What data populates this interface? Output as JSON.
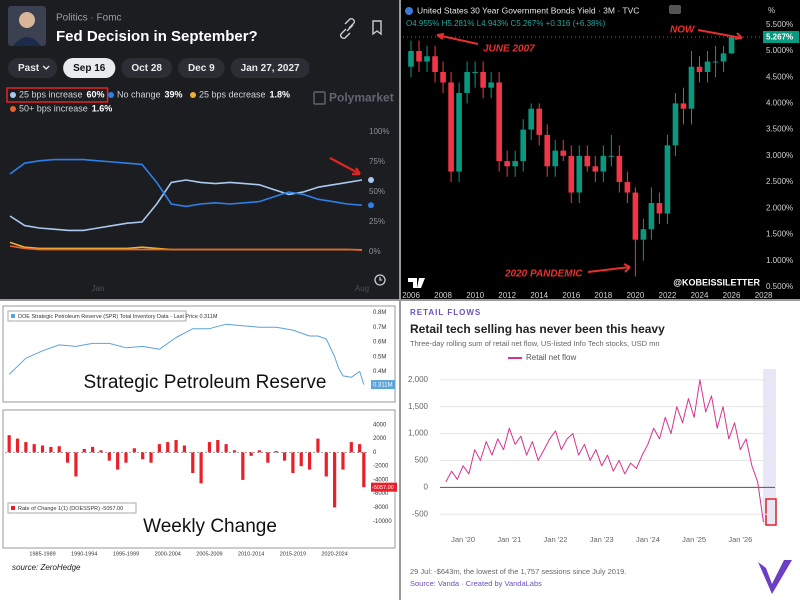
{
  "chart_data": [
    {
      "type": "line",
      "breadcrumb": "Politics · Fomc",
      "title": "Fed Decision in September?",
      "tabs": [
        "Past",
        "Sep 16",
        "Oct 28",
        "Dec 9",
        "Jan 27, 2027"
      ],
      "selected_tab": 1,
      "brand": "Polymarket",
      "categories": [
        null,
        null,
        null,
        null,
        null,
        null,
        "Jan",
        null,
        null,
        null,
        null,
        null,
        null,
        null,
        null,
        null,
        null,
        null,
        null,
        null,
        null,
        null,
        null,
        null,
        "Aug"
      ],
      "series": [
        {
          "name": "25 bps increase",
          "legend_value": "60%",
          "color": "#a9c9ef",
          "values": [
            30,
            22,
            20,
            19,
            18,
            18,
            20,
            22,
            24,
            25,
            40,
            58,
            60,
            58,
            57,
            58,
            57,
            56,
            52,
            48,
            50,
            54,
            56,
            58,
            60
          ]
        },
        {
          "name": "No change",
          "legend_value": "39%",
          "color": "#2f7fe8",
          "values": [
            65,
            74,
            76,
            77,
            77,
            77,
            76,
            75,
            74,
            73,
            58,
            40,
            38,
            40,
            41,
            40,
            41,
            42,
            46,
            50,
            48,
            44,
            42,
            40,
            39
          ]
        },
        {
          "name": "25 bps decrease",
          "legend_value": "1.8%",
          "color": "#f2b134",
          "values": [
            8,
            4,
            3,
            3,
            3,
            3,
            3,
            3,
            3,
            4,
            3,
            2,
            2,
            2,
            2,
            2,
            2,
            2,
            2,
            2,
            2,
            2,
            2,
            2,
            1.8
          ]
        },
        {
          "name": "50+ bps increase",
          "legend_value": "1.6%",
          "color": "#e8622a",
          "values": [
            5,
            3,
            2,
            2,
            2,
            2,
            2,
            2,
            2,
            2,
            2,
            2,
            2,
            2,
            2,
            2,
            2,
            2,
            2,
            2,
            2,
            2,
            2,
            2,
            1.6
          ]
        }
      ],
      "ylim": [
        0,
        100
      ],
      "yticks": [
        {
          "value": 0,
          "label": "0%"
        },
        {
          "value": 25,
          "label": "25%"
        },
        {
          "value": 50,
          "label": "50%"
        },
        {
          "value": 75,
          "label": "75%"
        },
        {
          "value": 100,
          "label": "100%"
        }
      ]
    },
    {
      "type": "candlestick",
      "title": "United States 30 Year Government Bonds Yield · 3M · TVC",
      "subtitle": "O4.955% H5.281% L4.943% C5.267% +0.316 (+6.38%)",
      "unit": "%",
      "x": [
        2006,
        2006.5,
        2007,
        2007.5,
        2008,
        2008.5,
        2009,
        2009.5,
        2010,
        2010.5,
        2011,
        2011.5,
        2012,
        2012.5,
        2013,
        2013.5,
        2014,
        2014.5,
        2015,
        2015.5,
        2016,
        2016.5,
        2017,
        2017.5,
        2018,
        2018.5,
        2019,
        2019.5,
        2020,
        2020.5,
        2021,
        2021.5,
        2022,
        2022.5,
        2023,
        2023.5,
        2024,
        2024.5,
        2025,
        2025.5,
        2026
      ],
      "open": [
        4.7,
        5.0,
        4.8,
        4.9,
        4.6,
        4.4,
        2.7,
        4.2,
        4.6,
        4.6,
        4.3,
        4.4,
        2.9,
        2.8,
        2.9,
        3.5,
        3.9,
        3.4,
        2.8,
        3.1,
        3.0,
        2.3,
        3.0,
        2.8,
        2.7,
        3.0,
        3.0,
        2.5,
        2.3,
        1.4,
        1.6,
        2.1,
        1.9,
        3.2,
        4.0,
        3.9,
        4.7,
        4.6,
        4.8,
        4.8,
        4.955
      ],
      "high": [
        5.2,
        5.2,
        5.1,
        5.1,
        4.8,
        4.6,
        4.4,
        4.8,
        4.8,
        4.8,
        4.6,
        4.6,
        3.1,
        3.1,
        3.7,
        4.0,
        4.0,
        3.6,
        3.3,
        3.3,
        3.2,
        3.2,
        3.2,
        3.0,
        3.2,
        3.4,
        3.2,
        2.7,
        2.4,
        1.8,
        2.4,
        2.3,
        3.4,
        4.2,
        4.3,
        5.0,
        4.9,
        5.0,
        5.1,
        5.1,
        5.281
      ],
      "low": [
        4.5,
        4.6,
        4.6,
        4.4,
        4.2,
        2.5,
        2.5,
        4.0,
        4.3,
        4.1,
        4.1,
        2.7,
        2.6,
        2.6,
        2.7,
        3.3,
        3.2,
        2.6,
        2.6,
        2.9,
        2.1,
        2.1,
        2.7,
        2.5,
        2.5,
        2.8,
        2.3,
        2.1,
        0.7,
        1.0,
        1.4,
        1.7,
        1.7,
        3.0,
        3.6,
        3.6,
        4.4,
        4.4,
        4.5,
        4.6,
        4.943
      ],
      "close": [
        5.0,
        4.8,
        4.9,
        4.6,
        4.4,
        2.7,
        4.2,
        4.6,
        4.6,
        4.3,
        4.4,
        2.9,
        2.8,
        2.9,
        3.5,
        3.9,
        3.4,
        2.8,
        3.1,
        3.0,
        2.3,
        3.0,
        2.8,
        2.7,
        3.0,
        3.0,
        2.5,
        2.3,
        1.4,
        1.6,
        2.1,
        1.9,
        3.2,
        4.0,
        3.9,
        4.7,
        4.6,
        4.8,
        4.8,
        4.955,
        5.267
      ],
      "up_color": "#089981",
      "down_color": "#f23645",
      "last_label": "5.267%",
      "xlim": [
        2005.5,
        2027.9
      ],
      "ylim": [
        0.44,
        5.63
      ],
      "xticks": [
        2006,
        2008,
        2010,
        2012,
        2014,
        2016,
        2018,
        2020,
        2022,
        2024,
        2026,
        2028
      ],
      "yticks": [
        {
          "value": 0.5,
          "label": "0.500%"
        },
        {
          "value": 1.0,
          "label": "1.000%"
        },
        {
          "value": 1.5,
          "label": "1.500%"
        },
        {
          "value": 2.0,
          "label": "2.000%"
        },
        {
          "value": 2.5,
          "label": "2.500%"
        },
        {
          "value": 3.0,
          "label": "3.000%"
        },
        {
          "value": 3.5,
          "label": "3.500%"
        },
        {
          "value": 4.0,
          "label": "4.000%"
        },
        {
          "value": 4.5,
          "label": "4.500%"
        },
        {
          "value": 5.0,
          "label": "5.000%"
        },
        {
          "value": 5.5,
          "label": "5.500%"
        }
      ],
      "annotations": [
        "JUNE 2007",
        "NOW",
        "2020 PANDEMIC"
      ],
      "watermark": "@KOBEISSILETTER"
    },
    {
      "type": "line",
      "legend": "DOE Strategic Petroleum Reserve (SPR) Total Inventory Data - Last Price 0.311M",
      "label": "Strategic Petroleum Reserve",
      "color": "#5ba3d9",
      "x": [
        1983,
        1985,
        1987,
        1989,
        1991,
        1993,
        1995,
        1997,
        1999,
        2001,
        2003,
        2005,
        2007,
        2009,
        2011,
        2013,
        2015,
        2017,
        2019,
        2020,
        2021,
        2022,
        2022.5,
        2023,
        2024,
        2025,
        2025.5
      ],
      "values": [
        0.38,
        0.49,
        0.54,
        0.58,
        0.57,
        0.59,
        0.59,
        0.56,
        0.57,
        0.55,
        0.63,
        0.69,
        0.69,
        0.72,
        0.71,
        0.7,
        0.7,
        0.68,
        0.64,
        0.64,
        0.62,
        0.5,
        0.42,
        0.37,
        0.36,
        0.4,
        0.311
      ],
      "last_label": "0.311M",
      "xlim": [
        1982.5,
        2026
      ],
      "ylim": [
        0.22,
        0.83
      ],
      "yticks": [
        {
          "value": 0.3,
          "label": "0.3M"
        },
        {
          "value": 0.4,
          "label": "0.4M"
        },
        {
          "value": 0.5,
          "label": "0.5M"
        },
        {
          "value": 0.6,
          "label": "0.6M"
        },
        {
          "value": 0.7,
          "label": "0.7M"
        },
        {
          "value": 0.8,
          "label": "0.8M"
        }
      ]
    },
    {
      "type": "bar",
      "legend": "Rate of Change 1(1) (DOESSPR) -5057.00",
      "label": "Weekly Change",
      "color": "#e8202a",
      "x": [
        1983,
        1984,
        1985,
        1986,
        1987,
        1988,
        1989,
        1990,
        1991,
        1992,
        1993,
        1994,
        1995,
        1996,
        1997,
        1998,
        1999,
        2000,
        2001,
        2002,
        2003,
        2004,
        2005,
        2006,
        2007,
        2008,
        2009,
        2010,
        2011,
        2012,
        2013,
        2014,
        2015,
        2016,
        2017,
        2018,
        2019,
        2020,
        2021,
        2022,
        2023,
        2024,
        2025,
        2025.5
      ],
      "values": [
        2500,
        2000,
        1500,
        1200,
        1000,
        800,
        900,
        -1500,
        -3500,
        500,
        800,
        300,
        -1200,
        -2500,
        -1500,
        600,
        -1000,
        -1500,
        1200,
        1500,
        1800,
        1000,
        -3000,
        -4500,
        1500,
        1800,
        1200,
        300,
        -4000,
        -500,
        300,
        -1500,
        200,
        -1200,
        -3000,
        -2000,
        -2500,
        2000,
        -3500,
        -8000,
        -2500,
        1500,
        1200,
        -5057
      ],
      "last_label": "-5057.00",
      "xlim": [
        1982.5,
        2026
      ],
      "ylim": [
        -13900,
        5000
      ],
      "yticks": [
        4000,
        2000,
        0,
        -2000,
        -4000,
        -6000,
        -8000,
        -10000
      ],
      "xticks": [
        {
          "value": 1987,
          "label": "1985-1989"
        },
        {
          "value": 1992,
          "label": "1990-1994"
        },
        {
          "value": 1997,
          "label": "1995-1999"
        },
        {
          "value": 2002,
          "label": "2000-2004"
        },
        {
          "value": 2007,
          "label": "2005-2009"
        },
        {
          "value": 2012,
          "label": "2010-2014"
        },
        {
          "value": 2017,
          "label": "2015-2019"
        },
        {
          "value": 2022,
          "label": "2020-2024"
        }
      ],
      "source": "source: ZeroHedge"
    },
    {
      "type": "line",
      "kicker": "RETAIL FLOWS",
      "title": "Retail tech selling has never been this heavy",
      "subtitle": "Three-day rolling sum of retail net flow, US-listed Info Tech stocks, USD mn",
      "x": [
        2019.625,
        2019.75,
        2019.875,
        2020,
        2020.125,
        2020.25,
        2020.375,
        2020.5,
        2020.625,
        2020.75,
        2020.875,
        2021,
        2021.125,
        2021.25,
        2021.375,
        2021.5,
        2021.625,
        2021.75,
        2021.875,
        2022,
        2022.125,
        2022.25,
        2022.375,
        2022.5,
        2022.625,
        2022.75,
        2022.875,
        2023,
        2023.125,
        2023.25,
        2023.375,
        2023.5,
        2023.625,
        2023.75,
        2023.875,
        2024,
        2024.125,
        2024.25,
        2024.375,
        2024.5,
        2024.625,
        2024.75,
        2024.875,
        2025,
        2025.125,
        2025.25,
        2025.375,
        2025.5,
        2025.625,
        2025.75,
        2025.875,
        2026,
        2026.125,
        2026.25,
        2026.375,
        2026.5
      ],
      "series": [
        {
          "name": "Retail net flow",
          "color": "#d6338f",
          "values": [
            100,
            300,
            150,
            400,
            250,
            700,
            500,
            850,
            600,
            900,
            700,
            1100,
            800,
            950,
            600,
            850,
            500,
            700,
            900,
            1050,
            700,
            900,
            1000,
            600,
            800,
            500,
            700,
            400,
            600,
            300,
            500,
            250,
            450,
            350,
            600,
            800,
            1100,
            900,
            1300,
            1000,
            1500,
            1200,
            1650,
            1300,
            2000,
            1400,
            1700,
            1100,
            1500,
            900,
            1200,
            700,
            900,
            400,
            100,
            -643
          ]
        }
      ],
      "xlim": [
        2019.5,
        2026.75
      ],
      "ylim": [
        -700,
        2200
      ],
      "grid": true,
      "xticks": [
        {
          "value": 2020,
          "label": "Jan '20"
        },
        {
          "value": 2021,
          "label": "Jan '21"
        },
        {
          "value": 2022,
          "label": "Jan '22"
        },
        {
          "value": 2023,
          "label": "Jan '23"
        },
        {
          "value": 2024,
          "label": "Jan '24"
        },
        {
          "value": 2025,
          "label": "Jan '25"
        },
        {
          "value": 2026,
          "label": "Jan '26"
        }
      ],
      "yticks": [
        -500,
        0,
        500,
        {
          "value": 1000,
          "label": "1,000"
        },
        {
          "value": 1500,
          "label": "1,500"
        },
        {
          "value": 2000,
          "label": "2,000"
        }
      ],
      "footnote": "29 Jul: -$643m, the lowest of the 1,757 sessions since July 2019.",
      "source": "Source: Vanda · Created by VandaLabs"
    }
  ]
}
